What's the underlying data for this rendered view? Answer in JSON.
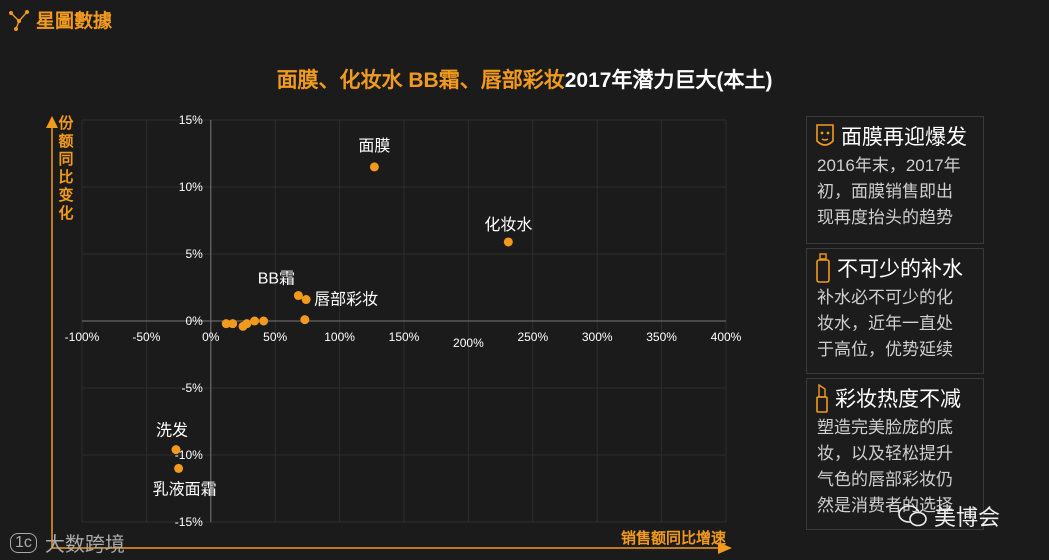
{
  "brand": {
    "name": "星圖數據"
  },
  "title": {
    "highlight": "面膜、化妆水  BB霜、唇部彩妆",
    "rest": "2017年潜力巨大(本土)"
  },
  "chart_data": {
    "type": "scatter",
    "title": "面膜、化妆水  BB霜、唇部彩妆2017年潜力巨大(本土)",
    "xlabel": "销售额同比增速",
    "ylabel": "份额同比变化",
    "xlim": [
      -100,
      400
    ],
    "ylim": [
      -15,
      15
    ],
    "x_ticks": [
      "-100%",
      "-50%",
      "0%",
      "50%",
      "100%",
      "150%",
      "200%",
      "250%",
      "300%",
      "350%",
      "400%"
    ],
    "y_ticks": [
      "15%",
      "10%",
      "5%",
      "0%",
      "-5%",
      "-10%",
      "-15%"
    ],
    "points": [
      {
        "x": 127,
        "y": 11.5,
        "label": "面膜"
      },
      {
        "x": 231,
        "y": 5.9,
        "label": "化妆水"
      },
      {
        "x": 68,
        "y": 1.9,
        "label": "BB霜"
      },
      {
        "x": 74,
        "y": 1.6,
        "label": "唇部彩妆"
      },
      {
        "x": -27,
        "y": -9.6,
        "label": "洗发"
      },
      {
        "x": -25,
        "y": -11.0,
        "label": "乳液面霜"
      },
      {
        "x": 12,
        "y": -0.2,
        "label": ""
      },
      {
        "x": 17,
        "y": -0.2,
        "label": ""
      },
      {
        "x": 25,
        "y": -0.4,
        "label": ""
      },
      {
        "x": 28,
        "y": -0.2,
        "label": ""
      },
      {
        "x": 34,
        "y": 0.0,
        "label": ""
      },
      {
        "x": 41,
        "y": 0.0,
        "label": ""
      },
      {
        "x": 73,
        "y": 0.1,
        "label": ""
      }
    ]
  },
  "side_panels": [
    {
      "icon": "face-mask-icon",
      "heading": "面膜再迎爆发",
      "lines": [
        "2016年末，2017年",
        "初，面膜销售即出",
        "现再度抬头的趋势"
      ]
    },
    {
      "icon": "bottle-icon",
      "heading": "不可少的补水",
      "lines": [
        "补水必不可少的化",
        "妆水，近年一直处",
        "于高位，优势延续"
      ]
    },
    {
      "icon": "lipstick-icon",
      "heading": "彩妆热度不减",
      "lines": [
        "塑造完美脸庞的底",
        "妆，以及轻松提升",
        "气色的唇部彩妆仍",
        "然是消费者的选择"
      ]
    }
  ],
  "watermarks": {
    "left": "大数跨境",
    "right": "美博会"
  },
  "colors": {
    "accent": "#f29a1d",
    "background": "#1b1b1b"
  }
}
